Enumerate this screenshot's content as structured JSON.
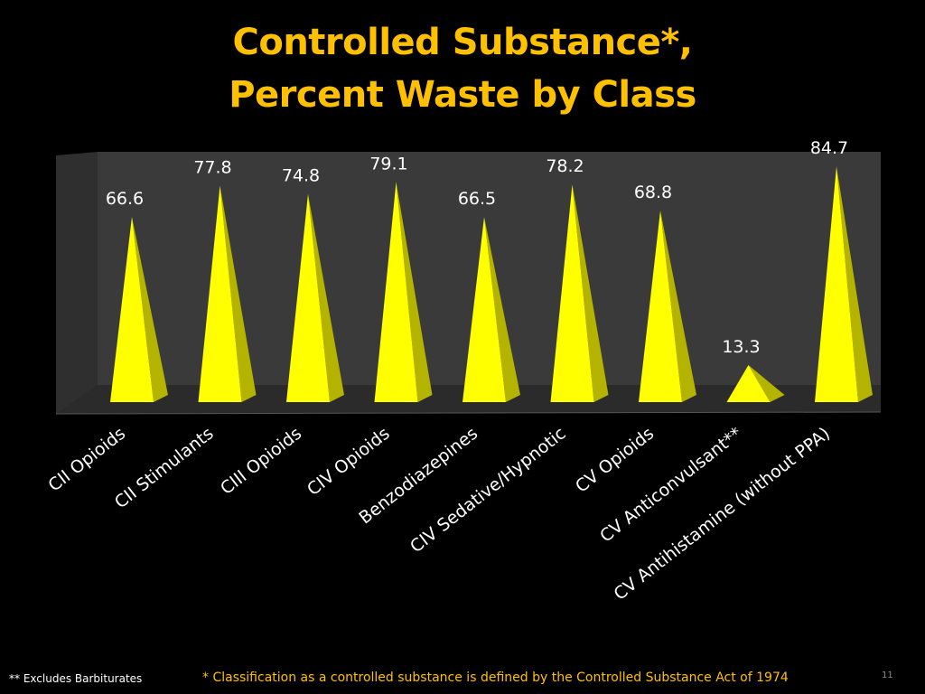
{
  "slide": {
    "title_line1": "Controlled Substance*,",
    "title_line2": "Percent Waste by Class",
    "footnote_left": "** Excludes Barbiturates",
    "footnote_main": "* Classification as a controlled substance is defined by the Controlled Substance Act of  1974",
    "slide_number": "11"
  },
  "colors": {
    "background": "#000000",
    "title": "#ffc000",
    "bar_front": "#ffff00",
    "bar_side": "#b3b300",
    "wall": "#3a3a3a",
    "floor": "#2b2b2b",
    "label": "#ffffff"
  },
  "chart_data": {
    "type": "bar",
    "shape": "3d-pyramid",
    "categories": [
      "CII Opioids",
      "CII Stimulants",
      "CIII Opioids",
      "CIV Opioids",
      "Benzodiazepines",
      "CIV Sedative/Hypnotic",
      "CV Opioids",
      "CV Anticonvulsant**",
      "CV Antihistamine (without PPA)"
    ],
    "series": [
      {
        "values": [
          66.6,
          77.8,
          74.8,
          79.1,
          66.5,
          78.2,
          68.8,
          13.3,
          84.7
        ]
      }
    ],
    "data_labels": [
      "66.6",
      "77.8",
      "74.8",
      "79.1",
      "66.5",
      "78.2",
      "68.8",
      "13.3",
      "84.7"
    ],
    "ylim": [
      0,
      90
    ],
    "grid": false,
    "legend": "none"
  }
}
